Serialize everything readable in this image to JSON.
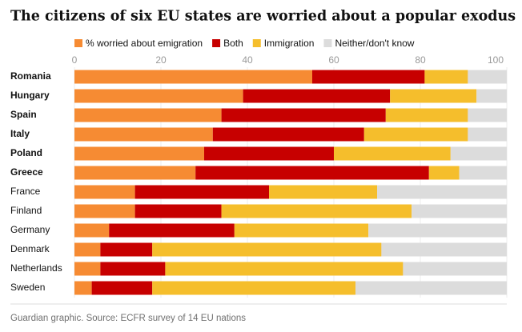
{
  "chart_data": {
    "type": "stacked-bar-horizontal",
    "title": "The citizens of six EU states are worried about a popular exodus",
    "source": "Guardian graphic. Source: ECFR survey of 14 EU nations",
    "categories": [
      "Romania",
      "Hungary",
      "Spain",
      "Italy",
      "Poland",
      "Greece",
      "France",
      "Finland",
      "Germany",
      "Denmark",
      "Netherlands",
      "Sweden"
    ],
    "series": [
      {
        "name": "% worried about emigration",
        "color": "#f68b33",
        "values": [
          55,
          39,
          34,
          32,
          30,
          28,
          14,
          14,
          8,
          6,
          6,
          4
        ]
      },
      {
        "name": "Both",
        "color": "#c70000",
        "values": [
          26,
          34,
          38,
          35,
          30,
          54,
          31,
          20,
          29,
          12,
          15,
          14
        ]
      },
      {
        "name": "Immigration",
        "color": "#f5be2c",
        "values": [
          10,
          20,
          19,
          24,
          27,
          7,
          25,
          44,
          31,
          53,
          55,
          47
        ]
      },
      {
        "name": "Neither/don't know",
        "color": "#dcdcdc",
        "values": [
          9,
          7,
          9,
          9,
          13,
          11,
          30,
          22,
          32,
          29,
          24,
          35
        ]
      }
    ],
    "xlim": [
      0,
      100
    ],
    "xticks": [
      0,
      20,
      40,
      60,
      80,
      100
    ]
  }
}
